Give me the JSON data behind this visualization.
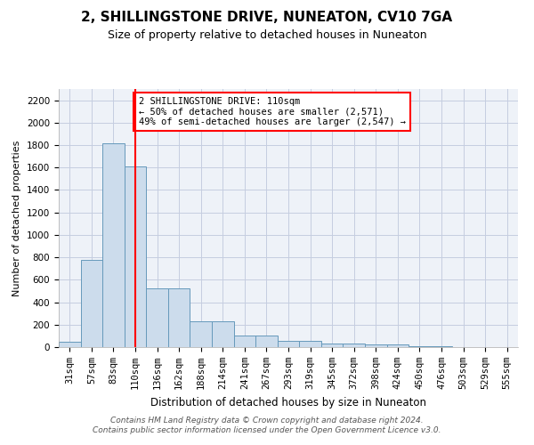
{
  "title": "2, SHILLINGSTONE DRIVE, NUNEATON, CV10 7GA",
  "subtitle": "Size of property relative to detached houses in Nuneaton",
  "xlabel": "Distribution of detached houses by size in Nuneaton",
  "ylabel": "Number of detached properties",
  "categories": [
    "31sqm",
    "57sqm",
    "83sqm",
    "110sqm",
    "136sqm",
    "162sqm",
    "188sqm",
    "214sqm",
    "241sqm",
    "267sqm",
    "293sqm",
    "319sqm",
    "345sqm",
    "372sqm",
    "398sqm",
    "424sqm",
    "450sqm",
    "476sqm",
    "503sqm",
    "529sqm",
    "555sqm"
  ],
  "values": [
    50,
    780,
    1820,
    1610,
    520,
    520,
    230,
    230,
    105,
    105,
    55,
    55,
    35,
    35,
    20,
    20,
    5,
    5,
    2,
    2,
    0
  ],
  "bar_color": "#ccdcec",
  "bar_edge_color": "#6699bb",
  "red_line_index": 3,
  "annotation_text": "2 SHILLINGSTONE DRIVE: 110sqm\n← 50% of detached houses are smaller (2,571)\n49% of semi-detached houses are larger (2,547) →",
  "footer_text": "Contains HM Land Registry data © Crown copyright and database right 2024.\nContains public sector information licensed under the Open Government Licence v3.0.",
  "ylim": [
    0,
    2300
  ],
  "yticks": [
    0,
    200,
    400,
    600,
    800,
    1000,
    1200,
    1400,
    1600,
    1800,
    2000,
    2200
  ],
  "background_color": "#eef2f8",
  "grid_color": "#c5cde0",
  "title_fontsize": 11,
  "subtitle_fontsize": 9,
  "ylabel_fontsize": 8,
  "xlabel_fontsize": 8.5,
  "tick_fontsize": 7.5,
  "footer_fontsize": 6.5,
  "annotation_fontsize": 7.5
}
